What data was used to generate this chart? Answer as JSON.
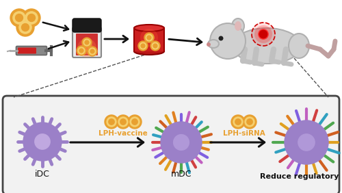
{
  "bg_color": "#ffffff",
  "box_bg": "#f0f0f0",
  "box_edge": "#444444",
  "purple_cell": "#9b80c8",
  "purple_light": "#c0a8e0",
  "purple_medium": "#b098d8",
  "orange_outer": "#e8a030",
  "orange_inner": "#f5d070",
  "red_scaffold": "#cc2020",
  "red_bright": "#ff4040",
  "arrow_color": "#111111",
  "label_idc": "iDC",
  "label_mdc": "mDC",
  "label_reduce": "Reduce regulatory DC",
  "label_vaccine": "LPH-vaccine",
  "label_sirna": "LPH-siRNA",
  "spike_colors_mdc": [
    "#e0a020",
    "#d06020",
    "#50a850",
    "#30a0c0",
    "#d04040",
    "#c060c0",
    "#8060e0",
    "#e08020"
  ],
  "spike_colors_rdc": [
    "#e0a020",
    "#d06020",
    "#50a850",
    "#30a0c0",
    "#d04040",
    "#c060c0",
    "#8060e0",
    "#e08020"
  ]
}
